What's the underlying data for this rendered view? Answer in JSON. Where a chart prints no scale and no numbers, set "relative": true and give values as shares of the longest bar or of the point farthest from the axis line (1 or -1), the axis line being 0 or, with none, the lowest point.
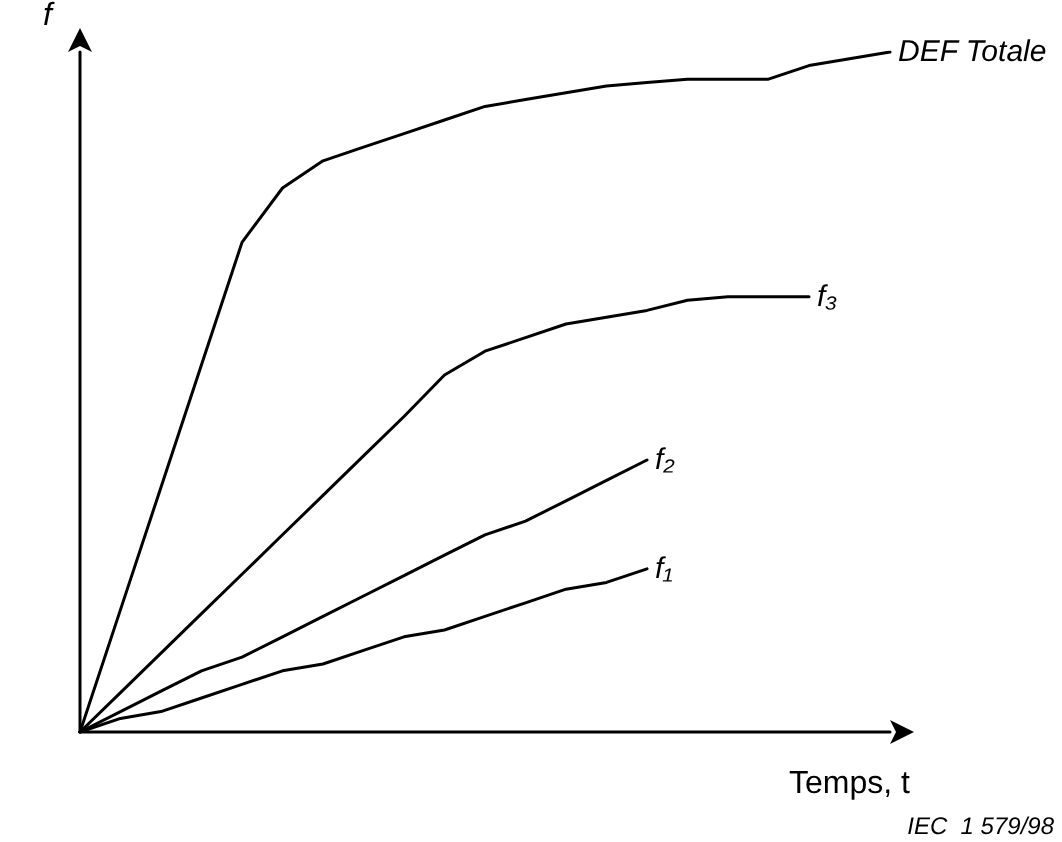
{
  "chart_data": {
    "type": "line",
    "relative": true,
    "xlabel": "Temps, t",
    "ylabel": "f",
    "annotations": [
      "IEC  1 579/98"
    ],
    "categories": [
      null,
      null,
      null,
      null,
      null,
      null,
      null,
      null,
      null,
      null,
      null,
      null,
      null,
      null,
      null,
      null,
      null,
      null,
      null,
      null,
      null
    ],
    "series": [
      {
        "name": "DEF Totale",
        "color": "#000000",
        "values": [
          0,
          0.18,
          0.36,
          0.54,
          0.72,
          0.8,
          0.84,
          0.86,
          0.88,
          0.9,
          0.92,
          0.93,
          0.94,
          0.95,
          0.955,
          0.96,
          0.96,
          0.96,
          0.98,
          0.99,
          1
        ]
      },
      {
        "name": "f₃",
        "color": "#000000",
        "values": [
          0,
          0.058,
          0.116,
          0.174,
          0.232,
          0.29,
          0.348,
          0.406,
          0.464,
          0.525,
          0.56,
          0.58,
          0.6,
          0.61,
          0.62,
          0.635,
          0.64,
          0.64,
          0.64,
          null,
          null
        ]
      },
      {
        "name": "f₂",
        "color": "#000000",
        "values": [
          0,
          0.03,
          0.06,
          0.09,
          0.11,
          0.14,
          0.17,
          0.2,
          0.23,
          0.26,
          0.29,
          0.31,
          0.34,
          0.37,
          0.4,
          null,
          null,
          null,
          null,
          null,
          null
        ]
      },
      {
        "name": "f₁",
        "color": "#000000",
        "values": [
          0,
          0.02,
          0.03,
          0.05,
          0.07,
          0.09,
          0.1,
          0.12,
          0.14,
          0.15,
          0.17,
          0.19,
          0.21,
          0.22,
          0.24,
          null,
          null,
          null,
          null,
          null,
          null
        ]
      }
    ],
    "legend": false,
    "grid": false,
    "marker": "none",
    "line_style": "solid"
  }
}
